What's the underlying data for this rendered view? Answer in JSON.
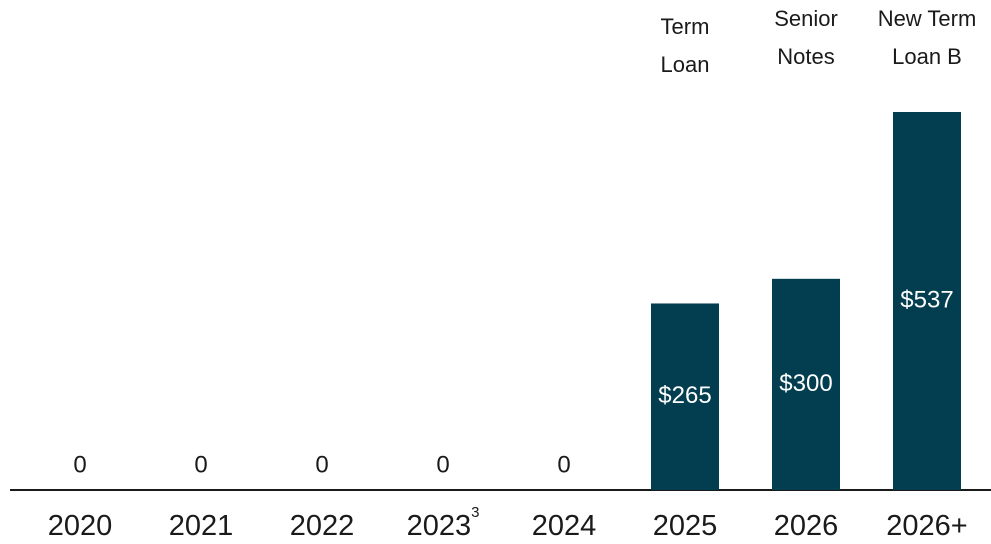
{
  "chart_data": {
    "type": "bar",
    "categories": [
      "2020",
      "2021",
      "2022",
      "2023",
      "2024",
      "2025",
      "2026",
      "2026+"
    ],
    "category_notes": [
      null,
      null,
      null,
      "3",
      null,
      null,
      null,
      null
    ],
    "values": [
      0,
      0,
      0,
      0,
      0,
      265,
      300,
      537
    ],
    "value_labels": [
      "0",
      "0",
      "0",
      "0",
      "0",
      "$265",
      "$300",
      "$537"
    ],
    "annotations": [
      null,
      null,
      null,
      null,
      null,
      [
        "Term",
        "Loan"
      ],
      [
        "Senior",
        "Notes"
      ],
      [
        "New Term",
        "Loan B"
      ]
    ],
    "color": "#023e50"
  }
}
